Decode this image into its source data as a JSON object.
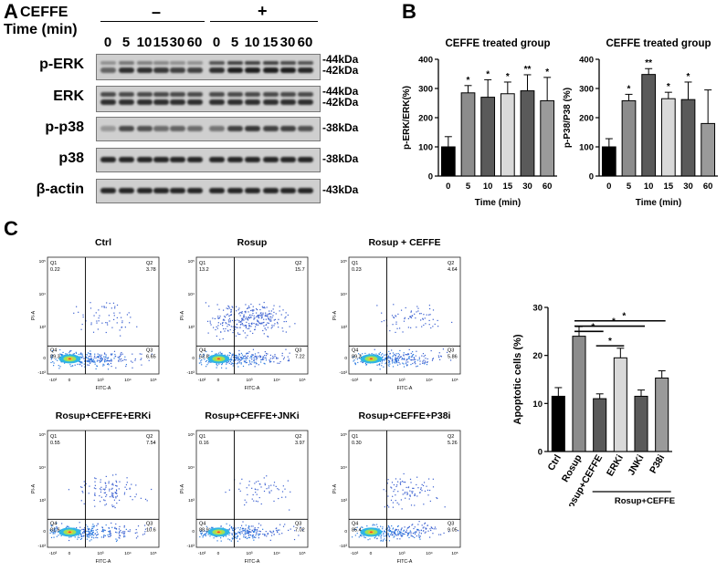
{
  "panels": {
    "a": "A",
    "b": "B",
    "c": "C"
  },
  "western": {
    "cef_label": "CEFFE",
    "time_label": "Time (min)",
    "minus": "–",
    "plus": "+",
    "time_points": [
      "0",
      "5",
      "10",
      "15",
      "30",
      "60",
      "0",
      "5",
      "10",
      "15",
      "30",
      "60"
    ],
    "rows": [
      {
        "name": "p-ERK",
        "kda": [
          "-44kDa",
          "-42kDa"
        ]
      },
      {
        "name": "ERK",
        "kda": [
          "-44kDa",
          "-42kDa"
        ]
      },
      {
        "name": "p-p38",
        "kda": [
          "-38kDa"
        ]
      },
      {
        "name": "p38",
        "kda": [
          "-38kDa"
        ]
      },
      {
        "name": "β-actin",
        "kda": [
          "-43kDa"
        ]
      }
    ]
  },
  "chart_data": [
    {
      "type": "bar",
      "title": "CEFFE treated group",
      "xlabel": "Time (min)",
      "ylabel": "p-ERK/ERK(%)",
      "categories": [
        "0",
        "5",
        "10",
        "15",
        "30",
        "60"
      ],
      "values": [
        100,
        285,
        270,
        282,
        292,
        258
      ],
      "errors": [
        35,
        25,
        60,
        40,
        55,
        80
      ],
      "significance": [
        "",
        "*",
        "*",
        "*",
        "**",
        "*"
      ],
      "colors": [
        "#000000",
        "#8c8c8c",
        "#5a5a5a",
        "#d9d9d9",
        "#5a5a5a",
        "#9a9a9a"
      ],
      "ylim": [
        0,
        400
      ],
      "yticks": [
        0,
        100,
        200,
        300,
        400
      ]
    },
    {
      "type": "bar",
      "title": "CEFFE treated group",
      "xlabel": "Time (min)",
      "ylabel": "p-P38/P38 (%)",
      "categories": [
        "0",
        "5",
        "10",
        "15",
        "30",
        "60"
      ],
      "values": [
        100,
        258,
        348,
        265,
        262,
        180
      ],
      "errors": [
        28,
        22,
        20,
        22,
        60,
        115
      ],
      "significance": [
        "",
        "*",
        "**",
        "*",
        "*",
        ""
      ],
      "colors": [
        "#000000",
        "#8c8c8c",
        "#5a5a5a",
        "#d9d9d9",
        "#5a5a5a",
        "#9a9a9a"
      ],
      "ylim": [
        0,
        400
      ],
      "yticks": [
        0,
        100,
        200,
        300,
        400
      ]
    },
    {
      "type": "bar",
      "title": "",
      "xlabel": "",
      "ylabel": "Apoptotic cells (%)",
      "categories": [
        "Ctrl",
        "Rosup",
        "Rosup+CEFFE",
        "ERKi",
        "JNKi",
        "P38i"
      ],
      "values": [
        11.5,
        24,
        11,
        19.5,
        11.5,
        15.3
      ],
      "errors": [
        1.8,
        2,
        1,
        2,
        1.3,
        1.5
      ],
      "colors": [
        "#000000",
        "#8c8c8c",
        "#5a5a5a",
        "#d9d9d9",
        "#5a5a5a",
        "#9a9a9a"
      ],
      "ylim": [
        0,
        30
      ],
      "yticks": [
        0,
        10,
        20,
        30
      ],
      "group_label": "Rosup+CEFFE",
      "significance_marker": "*"
    }
  ],
  "flow": {
    "x_axis": "FITC-A",
    "y_axis": "PI-A",
    "y_ticks": [
      "10⁵",
      "10⁴",
      "10³",
      "0",
      "-10³"
    ],
    "x_ticks": [
      "-10³",
      "0",
      "10³",
      "10⁴",
      "10⁵"
    ],
    "plots": [
      {
        "title": "Ctrl",
        "q1": "0.22",
        "q2": "3.78",
        "q3": "6.65",
        "q4": "89.3"
      },
      {
        "title": "Rosup",
        "q1": "13.2",
        "q2": "15.7",
        "q3": "7.22",
        "q4": "63.8"
      },
      {
        "title": "Rosup + CEFFE",
        "q1": "0.23",
        "q2": "4.64",
        "q3": "5.86",
        "q4": "89.3"
      },
      {
        "title": "Rosup+CEFFE+ERKi",
        "q1": "0.55",
        "q2": "7.54",
        "q3": "10.6",
        "q4": "81.6"
      },
      {
        "title": "Rosup+CEFFE+JNKi",
        "q1": "0.16",
        "q2": "3.97",
        "q3": "7.02",
        "q4": "88.9"
      },
      {
        "title": "Rosup+CEFFE+P38i",
        "q1": "0.30",
        "q2": "5.26",
        "q3": "9.05",
        "q4": "85.4"
      }
    ],
    "quadrant_names": {
      "q1": "Q1",
      "q2": "Q2",
      "q3": "Q3",
      "q4": "Q4"
    }
  }
}
